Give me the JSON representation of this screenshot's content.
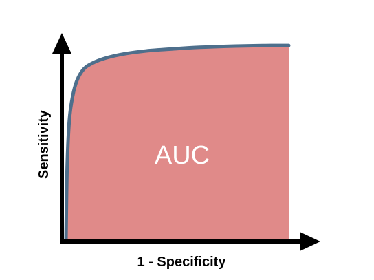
{
  "chart_data": {
    "type": "area",
    "xlabel": "1 - Specificity",
    "ylabel": "Sensitivity",
    "annotation": "AUC",
    "xlim": [
      0,
      1
    ],
    "ylim": [
      0,
      1
    ],
    "grid": false,
    "x": [
      0,
      0.005,
      0.015,
      0.03,
      0.05,
      0.08,
      0.12,
      0.18,
      0.26,
      0.36,
      0.48,
      0.6,
      0.72,
      0.84,
      0.92,
      1.0
    ],
    "y": [
      0,
      0.36,
      0.6,
      0.72,
      0.8,
      0.855,
      0.885,
      0.91,
      0.93,
      0.945,
      0.955,
      0.963,
      0.968,
      0.971,
      0.972,
      0.972
    ],
    "colors": {
      "area": "#e08a89",
      "curve": "#4e6f8c",
      "axis": "#000000"
    }
  }
}
